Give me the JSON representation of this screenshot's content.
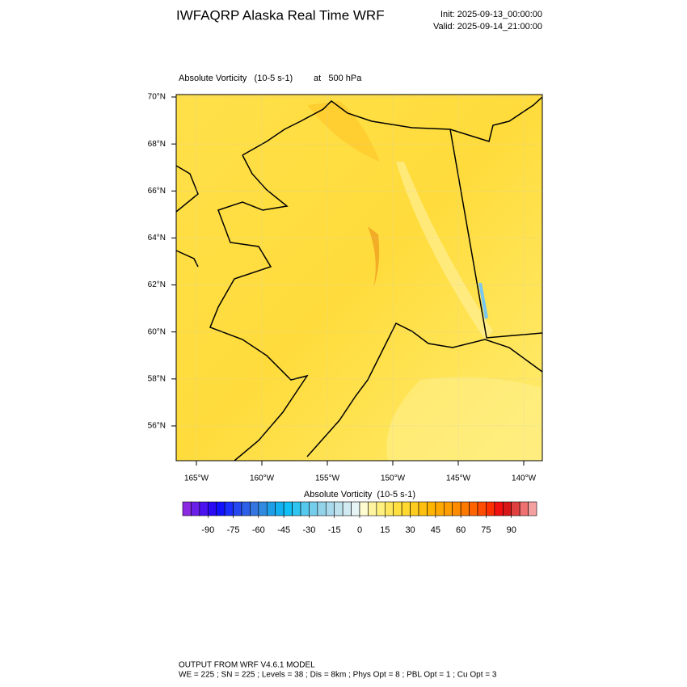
{
  "header": {
    "title": "IWFAQRP Alaska Real Time WRF",
    "init": "Init: 2025-09-13_00:00:00",
    "valid": "Valid: 2025-09-14_21:00:00"
  },
  "plot": {
    "field": "Absolute Vorticity   (10-5 s-1)",
    "level": "at   500 hPa",
    "lat_ticks": [
      {
        "value": 70,
        "label": "70°N"
      },
      {
        "value": 68,
        "label": "68°N"
      },
      {
        "value": 66,
        "label": "66°N"
      },
      {
        "value": 64,
        "label": "64°N"
      },
      {
        "value": 62,
        "label": "62°N"
      },
      {
        "value": 60,
        "label": "60°N"
      },
      {
        "value": 58,
        "label": "58°N"
      },
      {
        "value": 56,
        "label": "56°N"
      }
    ],
    "lon_ticks": [
      {
        "value": -165,
        "label": "165°W"
      },
      {
        "value": -160,
        "label": "160°W"
      },
      {
        "value": -155,
        "label": "155°W"
      },
      {
        "value": -150,
        "label": "150°W"
      },
      {
        "value": -145,
        "label": "145°W"
      },
      {
        "value": -140,
        "label": "140°W"
      }
    ]
  },
  "colorbar": {
    "title": "Absolute Vorticity  (10-5 s-1)",
    "lim": [
      -105,
      105
    ],
    "ticks": [
      -90,
      -75,
      -60,
      -45,
      -30,
      -15,
      0,
      15,
      30,
      45,
      60,
      75,
      90
    ],
    "colors": [
      "#8a2be2",
      "#6a1fe8",
      "#4b12f0",
      "#2a0af5",
      "#1010ff",
      "#1a2fff",
      "#2548f0",
      "#2e5fe8",
      "#3575e0",
      "#2f8ae0",
      "#1f9ee8",
      "#12b0f0",
      "#10bff5",
      "#30c5f0",
      "#55c8ee",
      "#75cdec",
      "#92d3ea",
      "#a8d9ec",
      "#bde2ee",
      "#d2ebf2",
      "#e6f4f6",
      "#fffbd0",
      "#fff4a0",
      "#fff080",
      "#ffe860",
      "#ffe040",
      "#ffd830",
      "#ffcc20",
      "#ffc010",
      "#ffb400",
      "#ffa800",
      "#ff9c00",
      "#ff8c00",
      "#ff7800",
      "#ff6400",
      "#ff4c00",
      "#ff3000",
      "#f01010",
      "#d81818",
      "#e04040",
      "#ee7070",
      "#f5a0a0"
    ]
  },
  "footer": {
    "line1": "OUTPUT FROM WRF V4.6.1 MODEL",
    "line2": "WE = 225 ; SN = 225 ; Levels = 38 ; Dis = 8km ; Phys Opt = 8 ; PBL Opt = 1 ; Cu Opt = 3"
  }
}
